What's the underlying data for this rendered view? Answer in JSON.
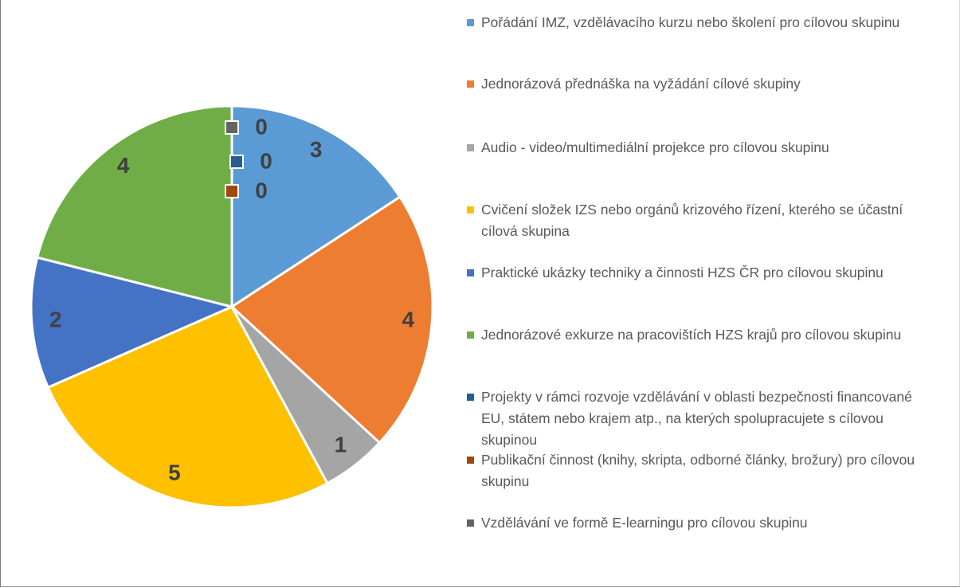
{
  "chart_data": {
    "type": "pie",
    "categories": [
      "Pořádání IMZ, vzdělávacího kurzu nebo školení pro cílovou skupinu",
      "Jednorázová přednáška na vyžádání cílové skupiny",
      "Audio - video/multimediální projekce pro cílovou skupinu",
      "Cvičení složek IZS nebo orgánů krizového řízení, kterého se účastní cílová skupina",
      "Praktické ukázky techniky a činnosti HZS ČR pro cílovou skupinu",
      "Jednorázové exkurze na pracovištích HZS krajů pro cílovou skupinu",
      "Projekty v rámci rozvoje vzdělávání v oblasti bezpečnosti financované EU, státem nebo krajem atp., na kterých spolupracujete s cílovou skupinou",
      "Publikační činnost (knihy, skripta, odborné články, brožury) pro cílovou skupinu",
      "Vzdělávání ve formě E-learningu pro cílovou skupinu"
    ],
    "values": [
      3,
      4,
      1,
      5,
      2,
      4,
      0,
      0,
      0
    ],
    "colors": [
      "#5b9bd5",
      "#ed7d31",
      "#a5a5a5",
      "#ffc000",
      "#4472c4",
      "#70ad47",
      "#255e91",
      "#9e480e",
      "#636363"
    ],
    "legend": "right"
  }
}
